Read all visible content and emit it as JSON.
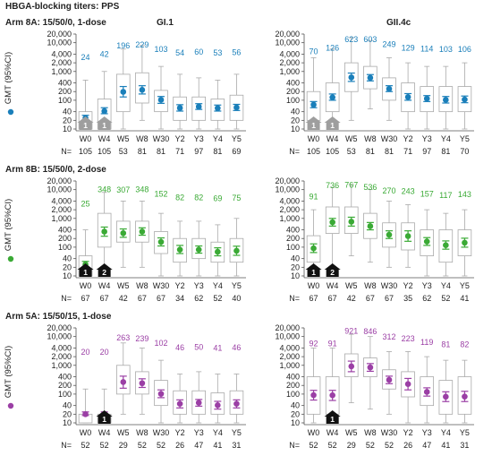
{
  "title": "HBGA-blocking titers: PPS",
  "timepoints": [
    "W0",
    "W4",
    "W5",
    "W8",
    "W30",
    "Y2",
    "Y3",
    "Y4",
    "Y5"
  ],
  "ylabel": "GMT (95%CI)",
  "n_label": "N=",
  "yticks": [
    10,
    20,
    40,
    100,
    200,
    400,
    1000,
    2000,
    4000,
    10000,
    20000
  ],
  "ytick_labels": [
    "10",
    "20",
    "40",
    "100",
    "200",
    "400",
    "1,000",
    "2,000",
    "4,000",
    "10,000",
    "20,000"
  ],
  "ylim": [
    10,
    20000
  ],
  "column_titles": [
    "GI.1",
    "GII.4c"
  ],
  "rows": [
    {
      "title": "Arm 8A: 15/50/0, 1-dose",
      "color": "#1a7fba",
      "arrow_color": "#9e9e9e",
      "doses": [
        {
          "tp": 0,
          "label": "1"
        },
        {
          "tp": 1,
          "label": "1"
        }
      ]
    },
    {
      "title": "Arm 8B: 15/50/0, 2-dose",
      "color": "#3aaa35",
      "arrow_color": "#111111",
      "doses": [
        {
          "tp": 0,
          "label": "1"
        },
        {
          "tp": 1,
          "label": "2"
        }
      ]
    },
    {
      "title": "Arm 5A: 15/50/15, 1-dose",
      "color": "#9b3fa5",
      "arrow_color": "#111111",
      "doses": [
        {
          "tp": 1,
          "label": "1"
        }
      ]
    }
  ],
  "chart_data": [
    {
      "type": "box",
      "title": "GI.1",
      "subtitle": "Arm 8A: 15/50/0, 1-dose",
      "categories": [
        "W0",
        "W4",
        "W5",
        "W8",
        "W30",
        "Y2",
        "Y3",
        "Y4",
        "Y5"
      ],
      "gmt": [
        24,
        42,
        196,
        229,
        103,
        54,
        60,
        53,
        56
      ],
      "ci": [
        [
          20,
          30
        ],
        [
          34,
          55
        ],
        [
          130,
          300
        ],
        [
          165,
          320
        ],
        [
          78,
          135
        ],
        [
          42,
          70
        ],
        [
          48,
          76
        ],
        [
          42,
          68
        ],
        [
          44,
          72
        ]
      ],
      "box": [
        [
          10,
          40
        ],
        [
          10,
          110
        ],
        [
          40,
          800
        ],
        [
          80,
          900
        ],
        [
          40,
          220
        ],
        [
          20,
          130
        ],
        [
          20,
          130
        ],
        [
          20,
          110
        ],
        [
          20,
          150
        ]
      ],
      "whisker": [
        [
          10,
          500
        ],
        [
          10,
          1000
        ],
        [
          10,
          6000
        ],
        [
          20,
          8000
        ],
        [
          10,
          1500
        ],
        [
          10,
          800
        ],
        [
          10,
          600
        ],
        [
          10,
          500
        ],
        [
          10,
          800
        ]
      ],
      "n": [
        105,
        105,
        53,
        81,
        81,
        71,
        97,
        81,
        69
      ]
    },
    {
      "type": "box",
      "title": "GII.4c",
      "subtitle": "Arm 8A: 15/50/0, 1-dose",
      "categories": [
        "W0",
        "W4",
        "W5",
        "W8",
        "W30",
        "Y2",
        "Y3",
        "Y4",
        "Y5"
      ],
      "gmt": [
        70,
        126,
        623,
        603,
        249,
        129,
        114,
        103,
        106
      ],
      "ci": [
        [
          55,
          90
        ],
        [
          100,
          165
        ],
        [
          450,
          880
        ],
        [
          470,
          780
        ],
        [
          200,
          320
        ],
        [
          100,
          170
        ],
        [
          90,
          145
        ],
        [
          80,
          135
        ],
        [
          82,
          140
        ]
      ],
      "box": [
        [
          20,
          200
        ],
        [
          40,
          400
        ],
        [
          200,
          2000
        ],
        [
          250,
          1500
        ],
        [
          100,
          600
        ],
        [
          40,
          400
        ],
        [
          40,
          300
        ],
        [
          40,
          300
        ],
        [
          40,
          300
        ]
      ],
      "whisker": [
        [
          10,
          3000
        ],
        [
          10,
          6000
        ],
        [
          20,
          15000
        ],
        [
          50,
          12000
        ],
        [
          20,
          3000
        ],
        [
          10,
          2000
        ],
        [
          10,
          1500
        ],
        [
          10,
          1500
        ],
        [
          10,
          2000
        ]
      ],
      "n": [
        105,
        105,
        53,
        81,
        81,
        71,
        97,
        81,
        70
      ]
    },
    {
      "type": "box",
      "title": "GI.1",
      "subtitle": "Arm 8B: 15/50/0, 2-dose",
      "categories": [
        "W0",
        "W4",
        "W5",
        "W8",
        "W30",
        "Y2",
        "Y3",
        "Y4",
        "Y5"
      ],
      "gmt": [
        25,
        348,
        307,
        348,
        152,
        82,
        82,
        69,
        75
      ],
      "ci": [
        [
          20,
          32
        ],
        [
          240,
          500
        ],
        [
          220,
          430
        ],
        [
          260,
          470
        ],
        [
          110,
          210
        ],
        [
          60,
          115
        ],
        [
          62,
          110
        ],
        [
          50,
          95
        ],
        [
          52,
          108
        ]
      ],
      "box": [
        [
          10,
          50
        ],
        [
          100,
          1500
        ],
        [
          150,
          800
        ],
        [
          150,
          800
        ],
        [
          60,
          350
        ],
        [
          30,
          200
        ],
        [
          40,
          200
        ],
        [
          30,
          150
        ],
        [
          30,
          200
        ]
      ],
      "whisker": [
        [
          10,
          400
        ],
        [
          20,
          8000
        ],
        [
          20,
          4000
        ],
        [
          20,
          4000
        ],
        [
          10,
          1500
        ],
        [
          10,
          800
        ],
        [
          10,
          800
        ],
        [
          10,
          600
        ],
        [
          10,
          1000
        ]
      ],
      "n": [
        67,
        67,
        42,
        67,
        67,
        34,
        62,
        52,
        40
      ]
    },
    {
      "type": "box",
      "title": "GII.4c",
      "subtitle": "Arm 8B: 15/50/0, 2-dose",
      "categories": [
        "W0",
        "W4",
        "W5",
        "W8",
        "W30",
        "Y2",
        "Y3",
        "Y4",
        "Y5"
      ],
      "gmt": [
        91,
        736,
        767,
        536,
        270,
        243,
        157,
        117,
        143
      ],
      "ci": [
        [
          65,
          130
        ],
        [
          540,
          1000
        ],
        [
          540,
          1100
        ],
        [
          400,
          720
        ],
        [
          200,
          370
        ],
        [
          160,
          370
        ],
        [
          115,
          215
        ],
        [
          85,
          165
        ],
        [
          100,
          205
        ]
      ],
      "box": [
        [
          30,
          250
        ],
        [
          300,
          2500
        ],
        [
          300,
          2500
        ],
        [
          200,
          1500
        ],
        [
          100,
          700
        ],
        [
          80,
          700
        ],
        [
          50,
          400
        ],
        [
          30,
          400
        ],
        [
          50,
          400
        ]
      ],
      "whisker": [
        [
          10,
          2000
        ],
        [
          20,
          12000
        ],
        [
          50,
          15000
        ],
        [
          30,
          10000
        ],
        [
          20,
          4000
        ],
        [
          20,
          3000
        ],
        [
          10,
          2000
        ],
        [
          10,
          1500
        ],
        [
          10,
          2000
        ]
      ],
      "n": [
        67,
        67,
        42,
        67,
        67,
        35,
        62,
        52,
        41
      ]
    },
    {
      "type": "box",
      "title": "GI.1",
      "subtitle": "Arm 5A: 15/50/15, 1-dose",
      "categories": [
        "W0",
        "W4",
        "W5",
        "W8",
        "W30",
        "Y2",
        "Y3",
        "Y4",
        "Y5"
      ],
      "gmt": [
        20,
        20,
        263,
        239,
        102,
        46,
        50,
        41,
        46
      ],
      "ci": [
        [
          18,
          24
        ],
        [
          18,
          24
        ],
        [
          160,
          420
        ],
        [
          170,
          340
        ],
        [
          75,
          140
        ],
        [
          33,
          63
        ],
        [
          38,
          65
        ],
        [
          30,
          56
        ],
        [
          33,
          63
        ]
      ],
      "box": [
        [
          10,
          20
        ],
        [
          10,
          20
        ],
        [
          100,
          1000
        ],
        [
          100,
          600
        ],
        [
          40,
          300
        ],
        [
          20,
          130
        ],
        [
          20,
          130
        ],
        [
          20,
          110
        ],
        [
          20,
          130
        ]
      ],
      "whisker": [
        [
          10,
          150
        ],
        [
          10,
          150
        ],
        [
          20,
          6000
        ],
        [
          20,
          4000
        ],
        [
          10,
          1500
        ],
        [
          10,
          500
        ],
        [
          10,
          600
        ],
        [
          10,
          500
        ],
        [
          10,
          500
        ]
      ],
      "n": [
        52,
        52,
        29,
        52,
        52,
        26,
        47,
        41,
        31
      ]
    },
    {
      "type": "box",
      "title": "GII.4c",
      "subtitle": "Arm 5A: 15/50/15, 1-dose",
      "categories": [
        "W0",
        "W4",
        "W5",
        "W8",
        "W30",
        "Y2",
        "Y3",
        "Y4",
        "Y5"
      ],
      "gmt": [
        92,
        91,
        921,
        846,
        312,
        223,
        119,
        81,
        82
      ],
      "ci": [
        [
          62,
          135
        ],
        [
          60,
          135
        ],
        [
          600,
          1400
        ],
        [
          620,
          1150
        ],
        [
          230,
          420
        ],
        [
          140,
          350
        ],
        [
          85,
          165
        ],
        [
          55,
          120
        ],
        [
          55,
          125
        ]
      ],
      "box": [
        [
          20,
          400
        ],
        [
          20,
          400
        ],
        [
          400,
          2500
        ],
        [
          400,
          1800
        ],
        [
          150,
          700
        ],
        [
          80,
          600
        ],
        [
          40,
          400
        ],
        [
          20,
          300
        ],
        [
          20,
          400
        ]
      ],
      "whisker": [
        [
          10,
          4000
        ],
        [
          10,
          4000
        ],
        [
          50,
          12000
        ],
        [
          30,
          10000
        ],
        [
          20,
          3000
        ],
        [
          10,
          3000
        ],
        [
          10,
          2000
        ],
        [
          10,
          1500
        ],
        [
          10,
          1500
        ]
      ],
      "n": [
        52,
        52,
        29,
        52,
        52,
        26,
        47,
        41,
        31
      ]
    }
  ]
}
